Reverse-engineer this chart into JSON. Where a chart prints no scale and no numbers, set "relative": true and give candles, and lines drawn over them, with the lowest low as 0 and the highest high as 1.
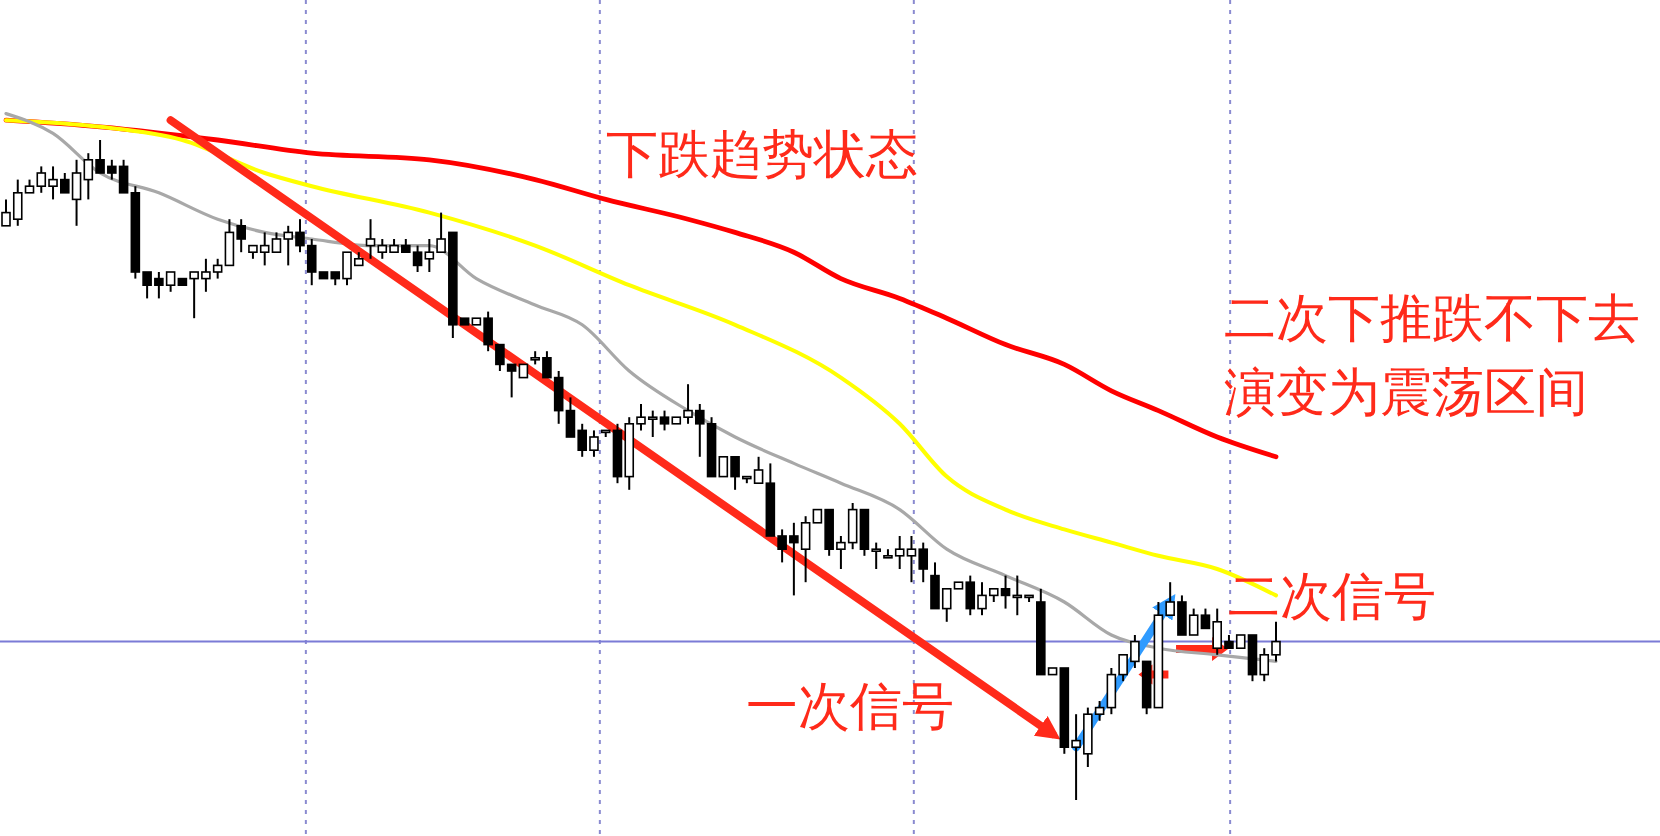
{
  "chart_data": {
    "type": "candlestick",
    "relative": true,
    "categories": [
      null,
      null,
      null,
      null,
      null,
      null,
      null,
      null,
      null,
      null,
      null,
      null,
      null,
      null,
      null,
      null,
      null,
      null,
      null,
      null,
      null,
      null,
      null,
      null,
      null,
      null,
      null,
      null,
      null,
      null,
      null,
      null,
      null,
      null,
      null,
      null,
      null,
      null,
      null,
      null,
      null,
      null,
      null,
      null,
      null,
      null,
      null,
      null,
      null,
      null,
      null,
      null,
      null,
      null,
      null,
      null,
      null,
      null,
      null,
      null,
      null,
      null,
      null,
      null,
      null,
      null,
      null,
      null,
      null,
      null,
      null,
      null,
      null,
      null,
      null,
      null,
      null,
      null,
      null,
      null,
      null,
      null,
      null,
      null,
      null,
      null,
      null,
      null,
      null,
      null,
      null,
      null,
      null,
      null,
      null,
      null,
      null,
      null,
      null,
      null,
      null,
      null,
      null,
      null,
      null,
      null,
      null,
      null,
      null
    ],
    "ohlc": [
      [
        0.87,
        0.91,
        0.87,
        0.89
      ],
      [
        0.88,
        0.94,
        0.87,
        0.92
      ],
      [
        0.92,
        0.94,
        0.92,
        0.93
      ],
      [
        0.93,
        0.96,
        0.92,
        0.95
      ],
      [
        0.93,
        0.96,
        0.91,
        0.94
      ],
      [
        0.94,
        0.95,
        0.92,
        0.92
      ],
      [
        0.91,
        0.97,
        0.87,
        0.95
      ],
      [
        0.94,
        0.98,
        0.91,
        0.97
      ],
      [
        0.97,
        1,
        0.95,
        0.95
      ],
      [
        0.96,
        0.97,
        0.94,
        0.95
      ],
      [
        0.96,
        0.97,
        0.92,
        0.92
      ],
      [
        0.92,
        0.93,
        0.79,
        0.8
      ],
      [
        0.8,
        0.8,
        0.76,
        0.78
      ],
      [
        0.79,
        0.8,
        0.76,
        0.78
      ],
      [
        0.78,
        0.8,
        0.77,
        0.8
      ],
      [
        0.79,
        0.79,
        0.78,
        0.78
      ],
      [
        0.79,
        0.8,
        0.73,
        0.8
      ],
      [
        0.79,
        0.82,
        0.77,
        0.8
      ],
      [
        0.8,
        0.82,
        0.79,
        0.81
      ],
      [
        0.81,
        0.88,
        0.81,
        0.86
      ],
      [
        0.87,
        0.88,
        0.83,
        0.85
      ],
      [
        0.83,
        0.84,
        0.82,
        0.84
      ],
      [
        0.83,
        0.86,
        0.81,
        0.84
      ],
      [
        0.83,
        0.86,
        0.83,
        0.85
      ],
      [
        0.85,
        0.87,
        0.81,
        0.86
      ],
      [
        0.86,
        0.88,
        0.83,
        0.84
      ],
      [
        0.84,
        0.85,
        0.78,
        0.8
      ],
      [
        0.8,
        0.8,
        0.79,
        0.79
      ],
      [
        0.8,
        0.8,
        0.78,
        0.79
      ],
      [
        0.79,
        0.83,
        0.78,
        0.83
      ],
      [
        0.81,
        0.83,
        0.81,
        0.82
      ],
      [
        0.84,
        0.88,
        0.82,
        0.85
      ],
      [
        0.83,
        0.85,
        0.82,
        0.84
      ],
      [
        0.83,
        0.85,
        0.83,
        0.84
      ],
      [
        0.84,
        0.85,
        0.83,
        0.83
      ],
      [
        0.83,
        0.84,
        0.8,
        0.81
      ],
      [
        0.82,
        0.85,
        0.8,
        0.83
      ],
      [
        0.83,
        0.89,
        0.83,
        0.85
      ],
      [
        0.86,
        0.86,
        0.7,
        0.72
      ],
      [
        0.73,
        0.73,
        0.72,
        0.72
      ],
      [
        0.72,
        0.73,
        0.72,
        0.73
      ],
      [
        0.73,
        0.74,
        0.68,
        0.69
      ],
      [
        0.69,
        0.69,
        0.65,
        0.66
      ],
      [
        0.66,
        0.66,
        0.61,
        0.65
      ],
      [
        0.64,
        0.66,
        0.64,
        0.66
      ],
      [
        0.67,
        0.68,
        0.66,
        0.67
      ],
      [
        0.67,
        0.68,
        0.64,
        0.64
      ],
      [
        0.64,
        0.65,
        0.57,
        0.59
      ],
      [
        0.59,
        0.61,
        0.55,
        0.55
      ],
      [
        0.56,
        0.57,
        0.52,
        0.53
      ],
      [
        0.53,
        0.56,
        0.52,
        0.55
      ],
      [
        0.56,
        0.56,
        0.55,
        0.56
      ],
      [
        0.56,
        0.57,
        0.48,
        0.49
      ],
      [
        0.49,
        0.58,
        0.47,
        0.57
      ],
      [
        0.57,
        0.6,
        0.56,
        0.58
      ],
      [
        0.58,
        0.59,
        0.55,
        0.58
      ],
      [
        0.58,
        0.59,
        0.56,
        0.57
      ],
      [
        0.57,
        0.58,
        0.57,
        0.58
      ],
      [
        0.58,
        0.63,
        0.57,
        0.59
      ],
      [
        0.59,
        0.6,
        0.52,
        0.57
      ],
      [
        0.57,
        0.58,
        0.49,
        0.49
      ],
      [
        0.49,
        0.52,
        0.49,
        0.52
      ],
      [
        0.52,
        0.52,
        0.47,
        0.49
      ],
      [
        0.49,
        0.49,
        0.48,
        0.49
      ],
      [
        0.48,
        0.52,
        0.48,
        0.5
      ],
      [
        0.48,
        0.51,
        0.4,
        0.4
      ],
      [
        0.4,
        0.41,
        0.36,
        0.38
      ],
      [
        0.4,
        0.42,
        0.31,
        0.39
      ],
      [
        0.38,
        0.43,
        0.33,
        0.42
      ],
      [
        0.42,
        0.44,
        0.42,
        0.44
      ],
      [
        0.44,
        0.44,
        0.37,
        0.38
      ],
      [
        0.38,
        0.4,
        0.35,
        0.39
      ],
      [
        0.39,
        0.45,
        0.38,
        0.44
      ],
      [
        0.44,
        0.44,
        0.37,
        0.38
      ],
      [
        0.38,
        0.39,
        0.35,
        0.38
      ],
      [
        0.37,
        0.38,
        0.37,
        0.37
      ],
      [
        0.37,
        0.4,
        0.35,
        0.38
      ],
      [
        0.37,
        0.4,
        0.33,
        0.38
      ],
      [
        0.38,
        0.39,
        0.33,
        0.35
      ],
      [
        0.34,
        0.36,
        0.29,
        0.29
      ],
      [
        0.29,
        0.32,
        0.27,
        0.32
      ],
      [
        0.32,
        0.33,
        0.32,
        0.33
      ],
      [
        0.33,
        0.34,
        0.28,
        0.29
      ],
      [
        0.29,
        0.33,
        0.28,
        0.31
      ],
      [
        0.31,
        0.32,
        0.3,
        0.32
      ],
      [
        0.32,
        0.34,
        0.29,
        0.31
      ],
      [
        0.31,
        0.34,
        0.28,
        0.31
      ],
      [
        0.31,
        0.31,
        0.3,
        0.31
      ],
      [
        0.3,
        0.32,
        0.19,
        0.19
      ],
      [
        0.19,
        0.2,
        0.19,
        0.2
      ],
      [
        0.2,
        0.2,
        0.07,
        0.08
      ],
      [
        0.08,
        0.13,
        0,
        0.09
      ],
      [
        0.07,
        0.14,
        0.05,
        0.13
      ],
      [
        0.13,
        0.15,
        0.12,
        0.14
      ],
      [
        0.14,
        0.2,
        0.13,
        0.19
      ],
      [
        0.19,
        0.22,
        0.18,
        0.22
      ],
      [
        0.21,
        0.25,
        0.2,
        0.24
      ],
      [
        0.21,
        0.21,
        0.13,
        0.14
      ],
      [
        0.14,
        0.3,
        0.14,
        0.28
      ],
      [
        0.28,
        0.33,
        0.28,
        0.3
      ],
      [
        0.3,
        0.31,
        0.25,
        0.25
      ],
      [
        0.25,
        0.29,
        0.25,
        0.28
      ],
      [
        0.28,
        0.29,
        0.26,
        0.26
      ],
      [
        0.23,
        0.29,
        0.22,
        0.27
      ],
      [
        0.24,
        0.25,
        0.23,
        0.23
      ],
      [
        0.23,
        0.25,
        0.23,
        0.25
      ],
      [
        0.25,
        0.25,
        0.18,
        0.19
      ],
      [
        0.19,
        0.23,
        0.18,
        0.22
      ],
      [
        0.22,
        0.27,
        0.21,
        0.24
      ]
    ],
    "series": [
      {
        "type": "line",
        "color": "#ff0000",
        "values": [
          1.03,
          null,
          null,
          null,
          null,
          null,
          null,
          null,
          1.02,
          null,
          null,
          null,
          null,
          null,
          null,
          null,
          null,
          null,
          1,
          null,
          null,
          null,
          null,
          null,
          null,
          null,
          0.98,
          null,
          null,
          null,
          null,
          null,
          null,
          null,
          null,
          null,
          0.97,
          null,
          null,
          null,
          null,
          null,
          null,
          null,
          null,
          0.94,
          null,
          null,
          null,
          null,
          null,
          0.91,
          null,
          null,
          null,
          null,
          null,
          null,
          0.88,
          null,
          null,
          null,
          0.86,
          null,
          null,
          null,
          null,
          0.83,
          null,
          null,
          null,
          0.79,
          null,
          null,
          null,
          null,
          0.76,
          null,
          null,
          null,
          0.73,
          null,
          null,
          null,
          null,
          0.69,
          null,
          null,
          null,
          null,
          0.66,
          null,
          null,
          null,
          0.62,
          null,
          null,
          null,
          0.59,
          null,
          null,
          null,
          null,
          0.55,
          null,
          null,
          null,
          null,
          0.52
        ]
      },
      {
        "type": "line",
        "color": "#ffff00",
        "values": [
          1.03,
          null,
          null,
          null,
          null,
          null,
          null,
          null,
          1.02,
          null,
          null,
          null,
          null,
          null,
          null,
          1,
          null,
          null,
          null,
          null,
          null,
          null,
          0.95,
          null,
          null,
          null,
          0.93,
          null,
          null,
          null,
          null,
          null,
          null,
          null,
          null,
          null,
          0.89,
          null,
          null,
          null,
          null,
          null,
          null,
          null,
          null,
          0.84,
          null,
          null,
          null,
          null,
          null,
          null,
          null,
          0.78,
          null,
          null,
          null,
          null,
          null,
          null,
          null,
          null,
          0.72,
          null,
          null,
          null,
          null,
          null,
          null,
          null,
          null,
          0.64,
          null,
          null,
          null,
          null,
          0.57,
          null,
          null,
          null,
          0.49,
          null,
          null,
          null,
          null,
          0.44,
          null,
          null,
          null,
          null,
          0.41,
          null,
          null,
          null,
          0.39,
          null,
          null,
          null,
          0.37,
          null,
          null,
          null,
          null,
          0.35,
          null,
          null,
          null,
          null,
          0.31
        ]
      },
      {
        "type": "line",
        "color": "#a8a8a8",
        "values": [
          1.04,
          null,
          null,
          null,
          1.01,
          null,
          null,
          null,
          0.95,
          null,
          null,
          null,
          null,
          0.92,
          null,
          null,
          null,
          null,
          0.88,
          null,
          null,
          null,
          0.86,
          null,
          null,
          null,
          0.85,
          null,
          null,
          null,
          null,
          0.84,
          null,
          null,
          null,
          null,
          0.84,
          null,
          null,
          null,
          0.79,
          null,
          null,
          null,
          null,
          0.75,
          null,
          null,
          null,
          0.72,
          null,
          null,
          null,
          0.65,
          null,
          null,
          null,
          null,
          0.59,
          null,
          null,
          null,
          0.55,
          null,
          null,
          null,
          null,
          0.51,
          null,
          null,
          null,
          0.48,
          null,
          null,
          null,
          null,
          0.44,
          null,
          null,
          null,
          0.38,
          null,
          null,
          null,
          null,
          0.34,
          null,
          null,
          null,
          null,
          0.3,
          null,
          null,
          null,
          0.25,
          null,
          null,
          null,
          0.23,
          null,
          null,
          null,
          null,
          0.22,
          null,
          null,
          null,
          null,
          0.21
        ]
      },
      {
        "type": "line",
        "color": "#ff2a1a",
        "values": [
          null,
          null,
          null,
          null,
          null,
          null,
          null,
          null,
          null,
          null,
          null,
          null,
          null,
          null,
          1.03,
          null,
          null,
          null,
          null,
          null,
          null,
          null,
          null,
          null,
          null,
          null,
          null,
          null,
          null,
          null,
          null,
          null,
          null,
          null,
          null,
          null,
          null,
          null,
          null,
          null,
          null,
          null,
          null,
          null,
          null,
          null,
          null,
          null,
          null,
          null,
          null,
          null,
          null,
          null,
          null,
          null,
          null,
          null,
          null,
          null,
          null,
          null,
          null,
          null,
          null,
          null,
          null,
          null,
          null,
          null,
          null,
          null,
          null,
          null,
          null,
          null,
          null,
          null,
          null,
          null,
          null,
          null,
          null,
          null,
          null,
          null,
          null,
          null,
          null,
          0.1,
          null,
          null,
          null,
          null,
          null,
          null,
          null,
          null,
          null,
          null,
          null,
          null,
          null,
          null,
          null,
          null,
          null,
          null,
          null
        ]
      },
      {
        "type": "line",
        "color": "#2f9bff",
        "values": [
          null,
          null,
          null,
          null,
          null,
          null,
          null,
          null,
          null,
          null,
          null,
          null,
          null,
          null,
          null,
          null,
          null,
          null,
          null,
          null,
          null,
          null,
          null,
          null,
          null,
          null,
          null,
          null,
          null,
          null,
          null,
          null,
          null,
          null,
          null,
          null,
          null,
          null,
          null,
          null,
          null,
          null,
          null,
          null,
          null,
          null,
          null,
          null,
          null,
          null,
          null,
          null,
          null,
          null,
          null,
          null,
          null,
          null,
          null,
          null,
          null,
          null,
          null,
          null,
          null,
          null,
          null,
          null,
          null,
          null,
          null,
          null,
          null,
          null,
          null,
          null,
          null,
          null,
          null,
          null,
          null,
          null,
          null,
          null,
          null,
          null,
          null,
          null,
          null,
          null,
          null,
          0.08,
          null,
          null,
          null,
          null,
          null,
          null,
          null,
          0.3,
          null,
          null,
          null,
          null,
          null,
          null,
          null,
          null,
          null
        ]
      }
    ],
    "ref_lines": [
      {
        "axis": "y",
        "value": 0.24,
        "color": "#7b7bd6"
      }
    ],
    "annotations": [
      "下跌趋势状态",
      "二次下推跌不下去",
      "演变为震荡区间",
      "二次信号",
      "一次信号"
    ]
  }
}
